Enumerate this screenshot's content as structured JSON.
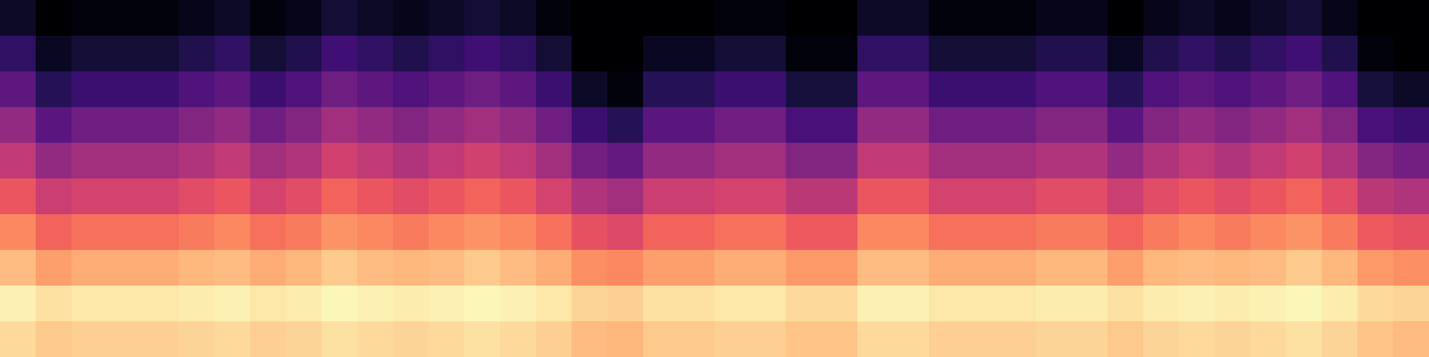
{
  "chart_data": {
    "type": "heatmap",
    "tick_labels": false,
    "clim": [
      -80,
      0
    ],
    "cells": [
      [
        -6,
        -9,
        -8,
        -8,
        -8,
        -7,
        -6,
        -8,
        -7,
        -5,
        -6,
        -7,
        -6,
        -5,
        -6,
        -8,
        -11,
        -12,
        -9,
        -9,
        -8,
        -8,
        -10,
        -10,
        -6,
        -6,
        -8,
        -8,
        -8,
        -7,
        -7,
        -9,
        -7,
        -6,
        -7,
        -6,
        -5,
        -7,
        -10,
        -11
      ],
      [
        -2,
        -5,
        -4,
        -4,
        -4,
        -3,
        -2,
        -4,
        -3,
        -1,
        -2,
        -3,
        -2,
        -1,
        -2,
        -4,
        -7,
        -8,
        -5,
        -5,
        -4,
        -4,
        -6,
        -6,
        -2,
        -2,
        -4,
        -4,
        -4,
        -3,
        -3,
        -5,
        -3,
        -2,
        -3,
        -2,
        -1,
        -3,
        -6,
        -7
      ],
      [
        -11,
        -16,
        -14,
        -14,
        -14,
        -12,
        -11,
        -14,
        -12,
        -9,
        -11,
        -12,
        -11,
        -9,
        -11,
        -14,
        -19,
        -20,
        -16,
        -16,
        -14,
        -14,
        -17,
        -17,
        -11,
        -11,
        -14,
        -14,
        -14,
        -12,
        -12,
        -16,
        -12,
        -11,
        -12,
        -11,
        -9,
        -12,
        -17,
        -19
      ],
      [
        -20,
        -26,
        -24,
        -24,
        -24,
        -22,
        -20,
        -24,
        -22,
        -18,
        -20,
        -22,
        -20,
        -18,
        -20,
        -24,
        -30,
        -32,
        -26,
        -26,
        -24,
        -24,
        -28,
        -28,
        -20,
        -20,
        -24,
        -24,
        -24,
        -22,
        -22,
        -26,
        -22,
        -20,
        -22,
        -20,
        -18,
        -22,
        -28,
        -30
      ],
      [
        -29,
        -36,
        -34,
        -34,
        -34,
        -31,
        -29,
        -34,
        -31,
        -26,
        -29,
        -31,
        -29,
        -26,
        -29,
        -34,
        -41,
        -44,
        -36,
        -36,
        -34,
        -34,
        -39,
        -39,
        -29,
        -29,
        -34,
        -34,
        -34,
        -31,
        -31,
        -36,
        -31,
        -29,
        -31,
        -29,
        -26,
        -31,
        -39,
        -41
      ],
      [
        -38,
        -47,
        -44,
        -44,
        -44,
        -41,
        -38,
        -44,
        -41,
        -35,
        -38,
        -41,
        -38,
        -35,
        -38,
        -44,
        -53,
        -56,
        -47,
        -47,
        -44,
        -44,
        -50,
        -50,
        -38,
        -38,
        -44,
        -44,
        -44,
        -41,
        -41,
        -47,
        -41,
        -38,
        -41,
        -38,
        -35,
        -41,
        -50,
        -53
      ],
      [
        -47,
        -58,
        -54,
        -54,
        -54,
        -50,
        -47,
        -54,
        -50,
        -44,
        -47,
        -50,
        -47,
        -44,
        -47,
        -54,
        -64,
        -68,
        -58,
        -58,
        -54,
        -54,
        -61,
        -61,
        -47,
        -47,
        -54,
        -54,
        -54,
        -50,
        -50,
        -58,
        -50,
        -47,
        -50,
        -47,
        -44,
        -50,
        -61,
        -64
      ],
      [
        -57,
        -68,
        -64,
        -64,
        -64,
        -60,
        -57,
        -64,
        -60,
        -54,
        -57,
        -60,
        -57,
        -54,
        -57,
        -64,
        -74,
        -78,
        -68,
        -68,
        -64,
        -64,
        -71,
        -71,
        -57,
        -57,
        -64,
        -64,
        -64,
        -60,
        -60,
        -68,
        -60,
        -57,
        -60,
        -57,
        -54,
        -60,
        -71,
        -74
      ],
      [
        -66,
        -75,
        -72,
        -72,
        -72,
        -69,
        -66,
        -72,
        -69,
        -63,
        -66,
        -69,
        -66,
        -63,
        -66,
        -72,
        -80,
        -80,
        -75,
        -75,
        -72,
        -72,
        -78,
        -78,
        -66,
        -66,
        -72,
        -72,
        -72,
        -69,
        -69,
        -75,
        -69,
        -66,
        -69,
        -66,
        -63,
        -69,
        -78,
        -80
      ],
      [
        -74,
        -80,
        -78,
        -78,
        -78,
        -76,
        -74,
        -78,
        -76,
        -72,
        -74,
        -76,
        -74,
        -72,
        -74,
        -78,
        -80,
        -80,
        -80,
        -80,
        -78,
        -78,
        -80,
        -80,
        -74,
        -74,
        -78,
        -78,
        -78,
        -76,
        -76,
        -80,
        -76,
        -74,
        -76,
        -74,
        -72,
        -76,
        -80,
        -80
      ]
    ]
  }
}
